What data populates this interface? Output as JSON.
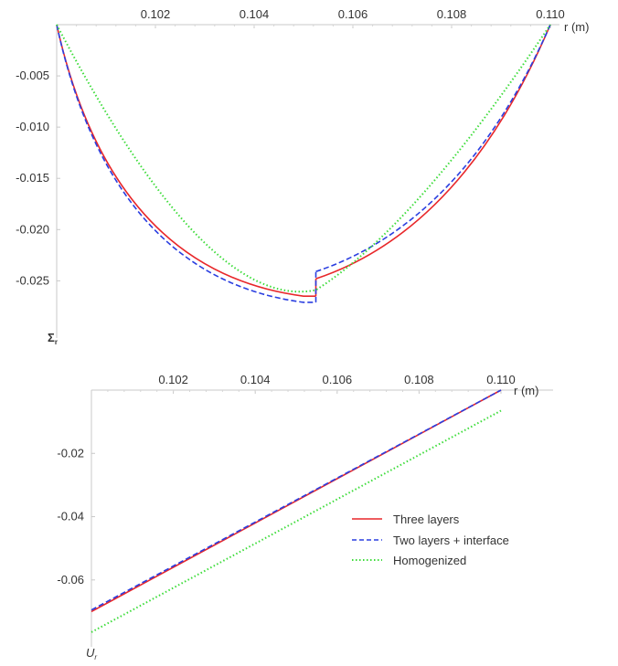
{
  "colors": {
    "three_layers": "#e8272a",
    "two_layers_interface": "#2a3ee0",
    "homogenized": "#3ddc3a",
    "axis": "#c8c8c8",
    "text": "#333333"
  },
  "chart_data": [
    {
      "type": "line",
      "title": "",
      "xlabel": "r (m)",
      "ylabel": "Σ_r",
      "xlim": [
        0.1,
        0.11
      ],
      "ylim": [
        -0.028,
        0
      ],
      "x_axis_position": "top",
      "grid": false,
      "x_ticks": [
        0.102,
        0.104,
        0.106,
        0.108,
        0.11
      ],
      "x_tick_labels": [
        "0.102",
        "0.104",
        "0.106",
        "0.108",
        "0.110"
      ],
      "y_ticks": [
        -0.005,
        -0.01,
        -0.015,
        -0.02,
        -0.025
      ],
      "y_tick_labels": [
        "-0.005",
        "-0.010",
        "-0.015",
        "-0.020",
        "-0.025"
      ],
      "interface_r": 0.10525,
      "series": [
        {
          "name": "Three layers",
          "style": "solid",
          "segments": [
            {
              "x": [
                0.1,
                0.1025,
                0.105,
                0.10525
              ],
              "y": [
                0,
                -0.0205,
                -0.0265,
                -0.0265
              ]
            },
            {
              "x": [
                0.10525,
                0.1075,
                0.11
              ],
              "y": [
                -0.0248,
                -0.0191,
                0
              ]
            }
          ]
        },
        {
          "name": "Two layers + interface",
          "style": "dashed",
          "segments": [
            {
              "x": [
                0.1,
                0.1025,
                0.105,
                0.10525
              ],
              "y": [
                0,
                -0.0211,
                -0.0271,
                -0.0271
              ]
            },
            {
              "x": [
                0.10525,
                0.1075,
                0.11
              ],
              "y": [
                -0.0241,
                -0.0184,
                0
              ]
            }
          ]
        },
        {
          "name": "Homogenized",
          "style": "dotted",
          "segments": [
            {
              "x": [
                0.1,
                0.1025,
                0.10525,
                0.108,
                0.11
              ],
              "y": [
                0,
                -0.0202,
                -0.0259,
                -0.0189,
                0
              ]
            }
          ]
        }
      ]
    },
    {
      "type": "line",
      "title": "",
      "xlabel": "r (m)",
      "ylabel": "U_r",
      "xlim": [
        0.1,
        0.11
      ],
      "ylim": [
        -0.082,
        0
      ],
      "x_axis_position": "top",
      "grid": false,
      "x_ticks": [
        0.102,
        0.104,
        0.106,
        0.108,
        0.11
      ],
      "x_tick_labels": [
        "0.102",
        "0.104",
        "0.106",
        "0.108",
        "0.110"
      ],
      "y_ticks": [
        -0.02,
        -0.04,
        -0.06
      ],
      "y_tick_labels": [
        "-0.02",
        "-0.04",
        "-0.06"
      ],
      "legend": {
        "placement": "right",
        "entries": [
          "Three layers",
          "Two layers + interface",
          "Homogenized"
        ]
      },
      "series": [
        {
          "name": "Three layers",
          "style": "solid",
          "x": [
            0.1,
            0.11
          ],
          "y": [
            -0.07,
            0
          ]
        },
        {
          "name": "Two layers + interface",
          "style": "dashed",
          "x": [
            0.1,
            0.11
          ],
          "y": [
            -0.0695,
            0
          ]
        },
        {
          "name": "Homogenized",
          "style": "dotted",
          "x": [
            0.1,
            0.11
          ],
          "y": [
            -0.0765,
            -0.0065
          ]
        }
      ]
    }
  ]
}
